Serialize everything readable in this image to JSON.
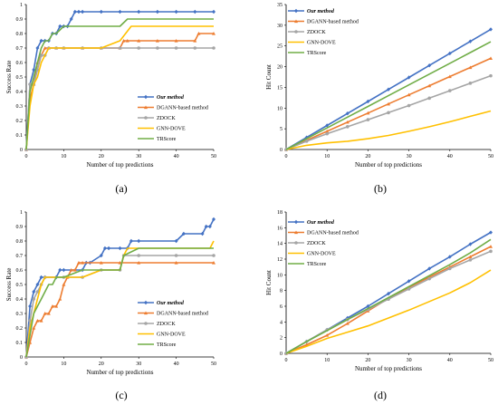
{
  "chart_data": [
    {
      "type": "line",
      "panel_label": "(a)",
      "xlabel": "Number of top predictions",
      "ylabel": "Success Rate",
      "xlim": [
        0,
        50
      ],
      "ylim": [
        0,
        1
      ],
      "xticks": [
        0,
        10,
        20,
        30,
        40,
        50
      ],
      "yticks": [
        0,
        0.1,
        0.2,
        0.3,
        0.4,
        0.5,
        0.6,
        0.7,
        0.8,
        0.9,
        1
      ],
      "ytick_labels": [
        "0",
        "0.1",
        "0.2",
        "0.3",
        "0.4",
        "0.5",
        "0.6",
        "0.7",
        "0.8",
        "0.9",
        "1"
      ],
      "legend_position": "right",
      "series": [
        {
          "name": "Our method",
          "color": "#4472c4",
          "marker": "diamond",
          "bold_italic": true,
          "x": [
            0,
            1,
            2,
            3,
            4,
            5,
            6,
            7,
            8,
            9,
            10,
            11,
            12,
            13,
            14,
            15,
            20,
            25,
            30,
            35,
            40,
            45,
            50
          ],
          "y": [
            0,
            0.45,
            0.55,
            0.7,
            0.75,
            0.75,
            0.75,
            0.8,
            0.8,
            0.85,
            0.85,
            0.85,
            0.9,
            0.95,
            0.95,
            0.95,
            0.95,
            0.95,
            0.95,
            0.95,
            0.95,
            0.95,
            0.95
          ]
        },
        {
          "name": "DGANN-based method",
          "color": "#ed7d31",
          "marker": "triangle",
          "bold_italic": false,
          "x": [
            0,
            1,
            2,
            3,
            4,
            5,
            6,
            8,
            10,
            15,
            20,
            25,
            26,
            27,
            30,
            35,
            40,
            45,
            46,
            50
          ],
          "y": [
            0,
            0.35,
            0.45,
            0.6,
            0.65,
            0.7,
            0.7,
            0.7,
            0.7,
            0.7,
            0.7,
            0.7,
            0.75,
            0.75,
            0.75,
            0.75,
            0.75,
            0.75,
            0.8,
            0.8
          ]
        },
        {
          "name": "ZDOCK",
          "color": "#a5a5a5",
          "marker": "circle",
          "bold_italic": false,
          "x": [
            0,
            1,
            2,
            3,
            4,
            5,
            6,
            8,
            10,
            15,
            20,
            25,
            30,
            35,
            40,
            45,
            50
          ],
          "y": [
            0,
            0.45,
            0.45,
            0.55,
            0.65,
            0.65,
            0.7,
            0.7,
            0.7,
            0.7,
            0.7,
            0.7,
            0.7,
            0.7,
            0.7,
            0.7,
            0.7
          ]
        },
        {
          "name": "GNN-DOVE",
          "color": "#ffc000",
          "marker": "none",
          "bold_italic": false,
          "x": [
            0,
            1,
            2,
            3,
            4,
            5,
            6,
            8,
            10,
            15,
            20,
            25,
            28,
            30,
            35,
            40,
            45,
            50
          ],
          "y": [
            0,
            0.3,
            0.45,
            0.5,
            0.6,
            0.65,
            0.7,
            0.7,
            0.7,
            0.7,
            0.7,
            0.75,
            0.85,
            0.85,
            0.85,
            0.85,
            0.85,
            0.85
          ]
        },
        {
          "name": "TRScore",
          "color": "#70ad47",
          "marker": "none",
          "bold_italic": false,
          "x": [
            0,
            1,
            2,
            3,
            4,
            5,
            6,
            7,
            8,
            10,
            15,
            20,
            25,
            27,
            30,
            35,
            40,
            45,
            50
          ],
          "y": [
            0,
            0.4,
            0.5,
            0.6,
            0.7,
            0.75,
            0.75,
            0.8,
            0.8,
            0.85,
            0.85,
            0.85,
            0.85,
            0.9,
            0.9,
            0.9,
            0.9,
            0.9,
            0.9
          ]
        }
      ]
    },
    {
      "type": "line",
      "panel_label": "(b)",
      "xlabel": "Number of top predictions",
      "ylabel": "Hit Count",
      "xlim": [
        0,
        50
      ],
      "ylim": [
        0,
        35
      ],
      "xticks": [
        0,
        10,
        20,
        30,
        40,
        50
      ],
      "yticks": [
        0,
        5,
        10,
        15,
        20,
        25,
        30,
        35
      ],
      "ytick_labels": [
        "0",
        "5",
        "10",
        "15",
        "20",
        "25",
        "30",
        "35"
      ],
      "legend_position": "top-left",
      "series": [
        {
          "name": "Our method",
          "color": "#4472c4",
          "marker": "diamond",
          "bold_italic": true,
          "x": [
            0,
            5,
            10,
            15,
            20,
            25,
            30,
            35,
            40,
            45,
            50
          ],
          "y": [
            0,
            2.9,
            5.8,
            8.7,
            11.6,
            14.5,
            17.4,
            20.3,
            23.2,
            26.1,
            29
          ]
        },
        {
          "name": "DGANN-based method",
          "color": "#ed7d31",
          "marker": "triangle",
          "bold_italic": false,
          "x": [
            0,
            5,
            10,
            15,
            20,
            25,
            30,
            35,
            40,
            45,
            50
          ],
          "y": [
            0,
            2.2,
            4.4,
            6.6,
            8.8,
            11,
            13.2,
            15.4,
            17.6,
            19.8,
            22
          ]
        },
        {
          "name": "ZDOCK",
          "color": "#a5a5a5",
          "marker": "circle",
          "bold_italic": false,
          "x": [
            0,
            5,
            10,
            15,
            20,
            25,
            30,
            35,
            40,
            45,
            50
          ],
          "y": [
            0,
            2,
            3.8,
            5.5,
            7.2,
            8.9,
            10.6,
            12.4,
            14.2,
            16,
            17.8
          ]
        },
        {
          "name": "GNN-DOVE",
          "color": "#ffc000",
          "marker": "none",
          "bold_italic": false,
          "x": [
            0,
            5,
            10,
            15,
            20,
            25,
            30,
            35,
            40,
            45,
            50
          ],
          "y": [
            0,
            1,
            1.6,
            2,
            2.6,
            3.4,
            4.4,
            5.5,
            6.7,
            8,
            9.3
          ]
        },
        {
          "name": "TRScore",
          "color": "#70ad47",
          "marker": "none",
          "bold_italic": false,
          "x": [
            0,
            5,
            10,
            15,
            20,
            25,
            30,
            35,
            40,
            45,
            50
          ],
          "y": [
            0,
            2.6,
            5.2,
            7.8,
            10.4,
            13,
            15.6,
            18.2,
            20.8,
            23.4,
            26
          ]
        }
      ]
    },
    {
      "type": "line",
      "panel_label": "(c)",
      "xlabel": "Number of top predictions",
      "ylabel": "Success Rate",
      "xlim": [
        0,
        50
      ],
      "ylim": [
        0,
        1
      ],
      "xticks": [
        0,
        10,
        20,
        30,
        40,
        50
      ],
      "yticks": [
        0,
        0.1,
        0.2,
        0.3,
        0.4,
        0.5,
        0.6,
        0.7,
        0.8,
        0.9,
        1
      ],
      "ytick_labels": [
        "0",
        "0.1",
        "0.2",
        "0.3",
        "0.4",
        "0.5",
        "0.6",
        "0.7",
        "0.8",
        "0.9",
        "1"
      ],
      "legend_position": "right",
      "series": [
        {
          "name": "Our method",
          "color": "#4472c4",
          "marker": "diamond",
          "bold_italic": true,
          "x": [
            0,
            1,
            2,
            3,
            4,
            5,
            8,
            9,
            10,
            15,
            16,
            17,
            20,
            21,
            22,
            25,
            27,
            28,
            30,
            40,
            42,
            47,
            48,
            49,
            50
          ],
          "y": [
            0,
            0.35,
            0.45,
            0.5,
            0.55,
            0.55,
            0.55,
            0.6,
            0.6,
            0.6,
            0.65,
            0.65,
            0.7,
            0.75,
            0.75,
            0.75,
            0.75,
            0.8,
            0.8,
            0.8,
            0.85,
            0.85,
            0.9,
            0.9,
            0.95
          ]
        },
        {
          "name": "DGANN-based method",
          "color": "#ed7d31",
          "marker": "triangle",
          "bold_italic": false,
          "x": [
            0,
            1,
            2,
            3,
            4,
            5,
            6,
            7,
            8,
            9,
            10,
            11,
            12,
            13,
            14,
            15,
            20,
            25,
            30,
            40,
            50
          ],
          "y": [
            0,
            0.1,
            0.2,
            0.25,
            0.25,
            0.3,
            0.3,
            0.35,
            0.35,
            0.4,
            0.5,
            0.55,
            0.6,
            0.6,
            0.65,
            0.65,
            0.65,
            0.65,
            0.65,
            0.65,
            0.65
          ]
        },
        {
          "name": "ZDOCK",
          "color": "#a5a5a5",
          "marker": "circle",
          "bold_italic": false,
          "x": [
            0,
            1,
            2,
            3,
            4,
            5,
            10,
            15,
            20,
            25,
            26,
            30,
            40,
            50
          ],
          "y": [
            0,
            0.25,
            0.4,
            0.45,
            0.5,
            0.55,
            0.55,
            0.55,
            0.6,
            0.6,
            0.7,
            0.7,
            0.7,
            0.7
          ]
        },
        {
          "name": "GNN-DOVE",
          "color": "#ffc000",
          "marker": "none",
          "bold_italic": false,
          "x": [
            0,
            1,
            2,
            3,
            4,
            5,
            10,
            15,
            20,
            25,
            26,
            27,
            30,
            40,
            49,
            50
          ],
          "y": [
            0,
            0.2,
            0.3,
            0.4,
            0.5,
            0.55,
            0.55,
            0.55,
            0.6,
            0.6,
            0.7,
            0.75,
            0.75,
            0.75,
            0.75,
            0.8
          ]
        },
        {
          "name": "TRScore",
          "color": "#70ad47",
          "marker": "none",
          "bold_italic": false,
          "x": [
            0,
            1,
            2,
            3,
            4,
            5,
            6,
            7,
            8,
            9,
            10,
            15,
            20,
            25,
            26,
            30,
            40,
            50
          ],
          "y": [
            0,
            0.15,
            0.3,
            0.35,
            0.4,
            0.45,
            0.5,
            0.5,
            0.55,
            0.55,
            0.55,
            0.6,
            0.6,
            0.6,
            0.7,
            0.75,
            0.75,
            0.75
          ]
        }
      ]
    },
    {
      "type": "line",
      "panel_label": "(d)",
      "xlabel": "Number of top predictions",
      "ylabel": "Hit Count",
      "xlim": [
        0,
        50
      ],
      "ylim": [
        0,
        18
      ],
      "xticks": [
        0,
        10,
        20,
        30,
        40,
        50
      ],
      "yticks": [
        0,
        2,
        4,
        6,
        8,
        10,
        12,
        14,
        16,
        18
      ],
      "ytick_labels": [
        "0",
        "2",
        "4",
        "6",
        "8",
        "10",
        "12",
        "14",
        "16",
        "18"
      ],
      "legend_position": "top-left",
      "series": [
        {
          "name": "Our method",
          "color": "#4472c4",
          "marker": "diamond",
          "bold_italic": true,
          "x": [
            0,
            5,
            10,
            15,
            20,
            25,
            30,
            35,
            40,
            45,
            50
          ],
          "y": [
            0,
            1.5,
            3,
            4.5,
            6,
            7.6,
            9.2,
            10.8,
            12.3,
            13.9,
            15.4
          ]
        },
        {
          "name": "DGANN-based method",
          "color": "#ed7d31",
          "marker": "triangle",
          "bold_italic": false,
          "x": [
            0,
            5,
            10,
            15,
            20,
            25,
            30,
            35,
            40,
            45,
            50
          ],
          "y": [
            0,
            1.1,
            2.3,
            3.8,
            5.4,
            7,
            8.4,
            9.7,
            11,
            12.3,
            13.6
          ]
        },
        {
          "name": "ZDOCK",
          "color": "#a5a5a5",
          "marker": "circle",
          "bold_italic": false,
          "x": [
            0,
            5,
            10,
            15,
            20,
            25,
            30,
            35,
            40,
            45,
            50
          ],
          "y": [
            0,
            1.5,
            3,
            4.3,
            5.6,
            6.9,
            8.2,
            9.5,
            10.8,
            11.9,
            13
          ]
        },
        {
          "name": "GNN-DOVE",
          "color": "#ffc000",
          "marker": "none",
          "bold_italic": false,
          "x": [
            0,
            5,
            10,
            15,
            20,
            25,
            30,
            35,
            40,
            45,
            50
          ],
          "y": [
            0,
            0.9,
            1.9,
            2.7,
            3.5,
            4.5,
            5.5,
            6.6,
            7.7,
            9,
            10.6
          ]
        },
        {
          "name": "TRScore",
          "color": "#70ad47",
          "marker": "none",
          "bold_italic": false,
          "x": [
            0,
            5,
            10,
            15,
            20,
            25,
            30,
            35,
            40,
            45,
            50
          ],
          "y": [
            0,
            1.5,
            2.9,
            4.3,
            5.7,
            7.1,
            8.5,
            9.9,
            11.3,
            12.8,
            14.5
          ]
        }
      ]
    }
  ]
}
